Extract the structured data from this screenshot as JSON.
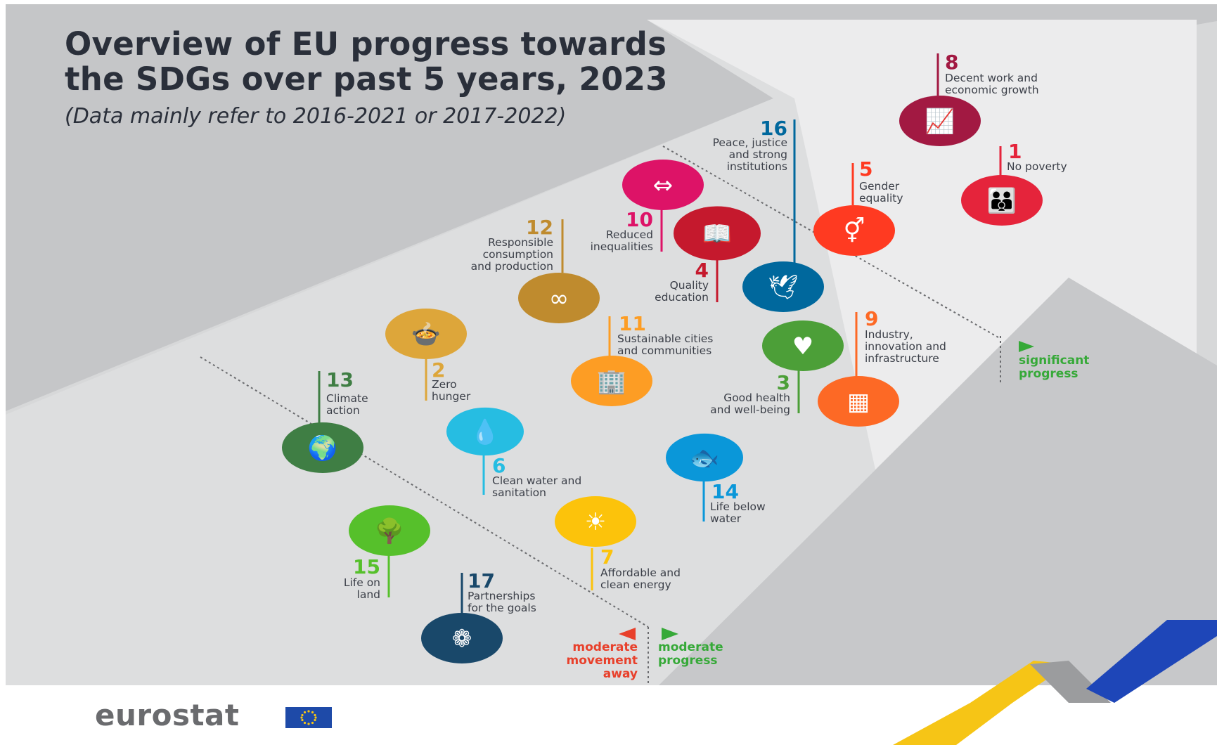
{
  "title_line1": "Overview of EU progress towards",
  "title_line2": "the SDGs over past 5 years, 2023",
  "subtitle": "(Data mainly refer to 2016-2021 or 2017-2022)",
  "logo": "eurostat",
  "legend": {
    "significant_progress": [
      "significant",
      "progress"
    ],
    "moderate_progress": [
      "moderate",
      "progress"
    ],
    "moderate_movement_away": [
      "moderate",
      "movement",
      "away"
    ],
    "colors": {
      "progress": "#36a938",
      "away": "#e8402b"
    }
  },
  "goals": [
    {
      "number": "1",
      "label": [
        "No poverty"
      ],
      "color": "#e5243b",
      "icon": "people-family-icon",
      "progress_zone": "significant progress"
    },
    {
      "number": "2",
      "label": [
        "Zero",
        "hunger"
      ],
      "color": "#dda63a",
      "icon": "food-bowl-icon",
      "progress_zone": "moderate progress"
    },
    {
      "number": "3",
      "label": [
        "Good health",
        "and well-being"
      ],
      "color": "#4c9f38",
      "icon": "heartbeat-icon",
      "progress_zone": "moderate progress"
    },
    {
      "number": "4",
      "label": [
        "Quality",
        "education"
      ],
      "color": "#c5192d",
      "icon": "book-pen-icon",
      "progress_zone": "moderate progress"
    },
    {
      "number": "5",
      "label": [
        "Gender",
        "equality"
      ],
      "color": "#ff3a21",
      "icon": "gender-symbol-icon",
      "progress_zone": "moderate progress"
    },
    {
      "number": "6",
      "label": [
        "Clean water and",
        "sanitation"
      ],
      "color": "#26bde2",
      "icon": "water-drop-glass-icon",
      "progress_zone": "moderate progress"
    },
    {
      "number": "7",
      "label": [
        "Affordable and",
        "clean energy"
      ],
      "color": "#fcc30b",
      "icon": "sun-power-icon",
      "progress_zone": "moderate progress"
    },
    {
      "number": "8",
      "label": [
        "Decent work and",
        "economic growth"
      ],
      "color": "#a21942",
      "icon": "growth-chart-icon",
      "progress_zone": "significant progress"
    },
    {
      "number": "9",
      "label": [
        "Industry,",
        "innovation and",
        "infrastructure"
      ],
      "color": "#fd6925",
      "icon": "cubes-icon",
      "progress_zone": "moderate progress"
    },
    {
      "number": "10",
      "label": [
        "Reduced",
        "inequalities"
      ],
      "color": "#dd1367",
      "icon": "equality-arrows-icon",
      "progress_zone": "moderate progress"
    },
    {
      "number": "11",
      "label": [
        "Sustainable cities",
        "and communities"
      ],
      "color": "#fd9d24",
      "icon": "city-buildings-icon",
      "progress_zone": "moderate progress"
    },
    {
      "number": "12",
      "label": [
        "Responsible",
        "consumption",
        "and production"
      ],
      "color": "#bf8b2e",
      "icon": "infinity-loop-icon",
      "progress_zone": "moderate progress"
    },
    {
      "number": "13",
      "label": [
        "Climate",
        "action"
      ],
      "color": "#3f7e44",
      "icon": "eye-globe-icon",
      "progress_zone": "moderate movement away"
    },
    {
      "number": "14",
      "label": [
        "Life below",
        "water"
      ],
      "color": "#0a97d9",
      "icon": "fish-waves-icon",
      "progress_zone": "moderate progress"
    },
    {
      "number": "15",
      "label": [
        "Life on",
        "land"
      ],
      "color": "#56c02b",
      "icon": "tree-birds-icon",
      "progress_zone": "moderate movement away"
    },
    {
      "number": "16",
      "label": [
        "Peace, justice",
        "and strong",
        "institutions"
      ],
      "color": "#00689d",
      "icon": "dove-gavel-icon",
      "progress_zone": "significant progress"
    },
    {
      "number": "17",
      "label": [
        "Partnerships",
        "for the goals"
      ],
      "color": "#19486a",
      "icon": "rings-flower-icon",
      "progress_zone": "moderate movement away"
    }
  ]
}
